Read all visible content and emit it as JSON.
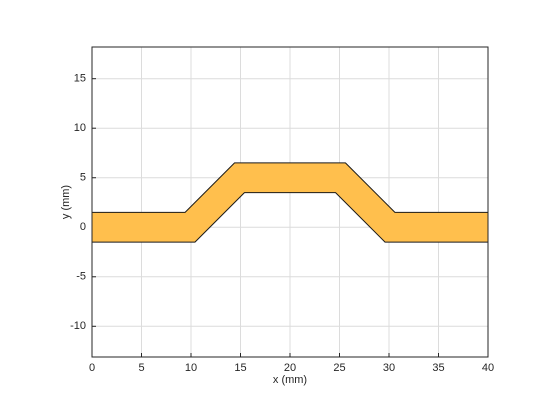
{
  "chart_data": {
    "type": "polygon",
    "xlabel": "x (mm)",
    "ylabel": "y (mm)",
    "x": [
      0,
      9.4,
      14.4,
      25.6,
      30.6,
      40,
      40,
      29.6,
      24.6,
      15.4,
      10.4,
      0
    ],
    "y": [
      1.5,
      1.5,
      6.5,
      6.5,
      1.5,
      1.5,
      -1.5,
      -1.5,
      3.5,
      3.5,
      -1.5,
      -1.5
    ],
    "color": "#ffbf4d",
    "edgecolor": "#1a1a1a",
    "xlim": [
      0,
      40
    ],
    "ylim": [
      -13.1,
      18.2
    ],
    "xticks": [
      0,
      5,
      10,
      15,
      20,
      25,
      30,
      35,
      40
    ],
    "yticks": [
      -10,
      -5,
      0,
      5,
      10,
      15
    ],
    "grid": true
  }
}
